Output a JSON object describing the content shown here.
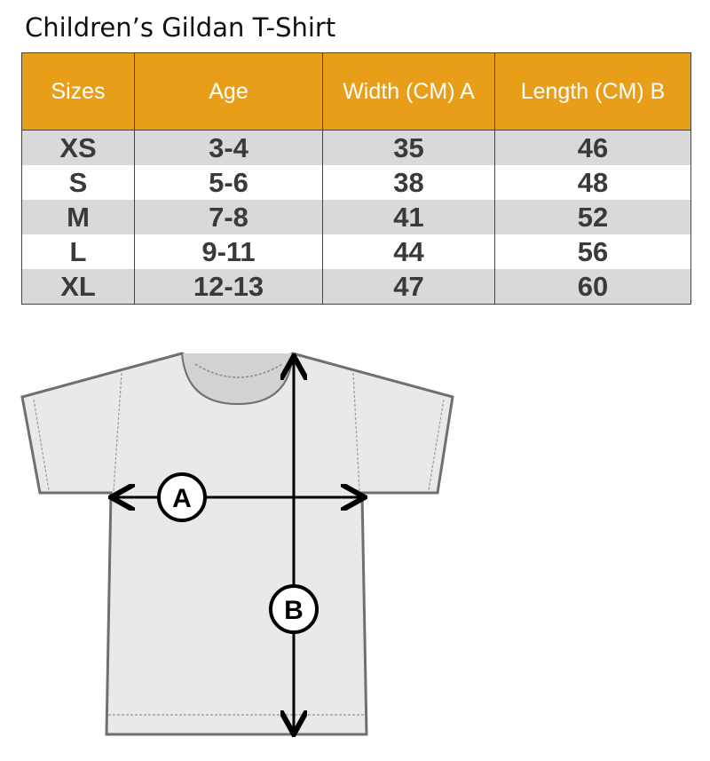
{
  "title": "Children’s Gildan T-Shirt",
  "table": {
    "headers": [
      "Sizes",
      "Age",
      "Width (CM) A",
      "Length  (CM) B"
    ],
    "rows": [
      [
        "XS",
        "3-4",
        "35",
        "46"
      ],
      [
        "S",
        "5-6",
        "38",
        "48"
      ],
      [
        "M",
        "7-8",
        "41",
        "52"
      ],
      [
        "L",
        "9-11",
        "44",
        "56"
      ],
      [
        "XL",
        "12-13",
        "47",
        "60"
      ]
    ]
  },
  "diagram": {
    "label_a": "A",
    "label_b": "B"
  },
  "colors": {
    "header": "#E99E1A",
    "stripe": "#D9D9D9"
  }
}
